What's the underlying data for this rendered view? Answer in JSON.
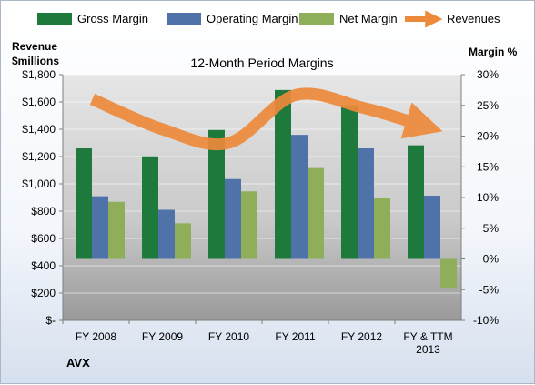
{
  "chart_data": {
    "type": "bar",
    "title": "12-Month Period Margins",
    "company": "AVX",
    "left_axis": {
      "title_line1": "Revenue",
      "title_line2": "$millions",
      "ylim": [
        0,
        1800
      ],
      "ticks": [
        0,
        200,
        400,
        600,
        800,
        1000,
        1200,
        1400,
        1600,
        1800
      ],
      "tick_labels": [
        "$-",
        "$200",
        "$400",
        "$600",
        "$800",
        "$1,000",
        "$1,200",
        "$1,400",
        "$1,600",
        "$1,800"
      ]
    },
    "right_axis": {
      "title": "Margin %",
      "ylim": [
        -10,
        30
      ],
      "ticks": [
        -10,
        -5,
        0,
        5,
        10,
        15,
        20,
        25,
        30
      ],
      "tick_labels": [
        "-10%",
        "-5%",
        "0%",
        "5%",
        "10%",
        "15%",
        "20%",
        "25%",
        "30%"
      ]
    },
    "categories": [
      "FY 2008",
      "FY 2009",
      "FY 2010",
      "FY 2011",
      "FY 2012",
      "FY & TTM 2013"
    ],
    "series": [
      {
        "name": "Gross Margin",
        "axis": "right",
        "kind": "bar",
        "color": "#1e7a3c",
        "values": [
          18,
          16.7,
          21,
          27.5,
          25,
          18.5
        ]
      },
      {
        "name": "Operating Margin",
        "axis": "right",
        "kind": "bar",
        "color": "#4f73a8",
        "values": [
          10.2,
          8,
          13,
          20.2,
          18,
          10.3
        ]
      },
      {
        "name": "Net Margin",
        "axis": "right",
        "kind": "bar",
        "color": "#8fae5a",
        "values": [
          9.3,
          5.8,
          11,
          14.8,
          9.9,
          -4.7
        ]
      },
      {
        "name": "Revenues",
        "axis": "left",
        "kind": "line",
        "color": "#ed8a3a",
        "values": [
          1620,
          1400,
          1300,
          1650,
          1560,
          1440
        ]
      }
    ],
    "legend_position": "top",
    "grid": true,
    "plot_background": "#c2c2c2"
  }
}
